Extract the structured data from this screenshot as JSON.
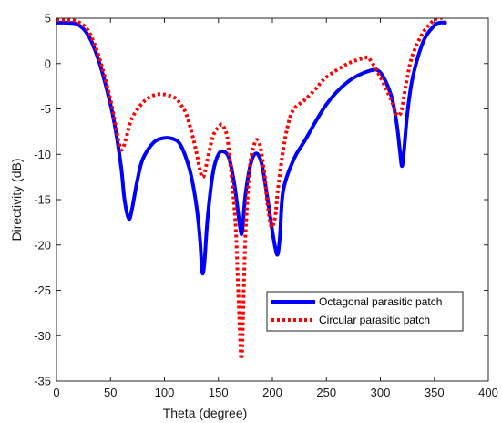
{
  "chart_data": {
    "type": "line",
    "title": "",
    "xlabel": "Theta (degree)",
    "ylabel": "Directivity (dB)",
    "xlim": [
      0,
      400
    ],
    "ylim": [
      -35,
      5
    ],
    "xticks": [
      0,
      50,
      100,
      150,
      200,
      250,
      300,
      350,
      400
    ],
    "yticks": [
      5,
      0,
      -5,
      -10,
      -15,
      -20,
      -25,
      -30,
      -35
    ],
    "grid": false,
    "legend_position": "bottom-right",
    "series": [
      {
        "name": "Octagonal parasitic patch",
        "color": "#0000ff",
        "style": "solid",
        "x": [
          0,
          10,
          20,
          30,
          40,
          50,
          55,
          60,
          63,
          67,
          70,
          75,
          80,
          90,
          100,
          110,
          115,
          120,
          125,
          130,
          133,
          135,
          137,
          140,
          145,
          150,
          155,
          160,
          165,
          170,
          172,
          175,
          180,
          185,
          190,
          195,
          200,
          203,
          205,
          207,
          210,
          220,
          230,
          250,
          270,
          290,
          300,
          310,
          315,
          318,
          320,
          322,
          325,
          330,
          340,
          350,
          355,
          360
        ],
        "y": [
          4.5,
          4.5,
          4.3,
          3.0,
          0.0,
          -4.5,
          -7.5,
          -11.5,
          -15.0,
          -17.1,
          -16.0,
          -12.8,
          -10.5,
          -8.7,
          -8.2,
          -8.4,
          -9.0,
          -10.4,
          -12.5,
          -16.0,
          -19.5,
          -23.0,
          -22.0,
          -17.0,
          -12.0,
          -10.0,
          -9.7,
          -10.5,
          -13.5,
          -18.0,
          -18.5,
          -14.5,
          -11.0,
          -9.9,
          -11.0,
          -14.5,
          -18.5,
          -20.5,
          -21.0,
          -19.0,
          -14.0,
          -10.5,
          -8.5,
          -4.5,
          -2.0,
          -0.8,
          -1.0,
          -3.5,
          -6.5,
          -9.5,
          -11.3,
          -9.5,
          -5.5,
          -1.5,
          2.5,
          4.2,
          4.5,
          4.5
        ]
      },
      {
        "name": "Circular parasitic patch",
        "color": "#ff0000",
        "style": "dotted",
        "x": [
          0,
          10,
          20,
          30,
          40,
          50,
          55,
          58,
          60,
          62,
          65,
          70,
          80,
          90,
          100,
          110,
          115,
          120,
          125,
          130,
          133,
          135,
          137,
          140,
          145,
          150,
          153,
          155,
          158,
          160,
          163,
          166,
          168,
          170,
          171,
          172,
          173,
          175,
          178,
          180,
          183,
          185,
          188,
          190,
          193,
          195,
          198,
          200,
          203,
          205,
          210,
          215,
          220,
          230,
          240,
          250,
          270,
          285,
          290,
          300,
          310,
          315,
          318,
          320,
          322,
          325,
          330,
          340,
          350,
          355,
          358,
          360
        ],
        "y": [
          4.8,
          4.8,
          4.6,
          3.5,
          0.5,
          -4.0,
          -7.0,
          -8.8,
          -9.5,
          -9.2,
          -8.0,
          -6.0,
          -4.3,
          -3.5,
          -3.4,
          -3.8,
          -4.5,
          -5.5,
          -7.5,
          -10.0,
          -11.8,
          -12.5,
          -12.2,
          -10.5,
          -8.0,
          -7.0,
          -6.7,
          -7.0,
          -8.0,
          -10.0,
          -13.5,
          -18.0,
          -24.0,
          -30.0,
          -32.5,
          -31.5,
          -27.0,
          -19.0,
          -13.0,
          -10.5,
          -9.0,
          -8.4,
          -8.8,
          -10.0,
          -12.5,
          -15.0,
          -17.5,
          -18.0,
          -16.5,
          -14.0,
          -9.5,
          -6.5,
          -5.0,
          -4.0,
          -2.8,
          -1.5,
          0.0,
          0.6,
          0.5,
          -1.5,
          -4.0,
          -5.6,
          -5.6,
          -5.0,
          -3.5,
          -1.5,
          1.0,
          3.5,
          4.8,
          5.0,
          5.0,
          4.8
        ]
      }
    ]
  }
}
